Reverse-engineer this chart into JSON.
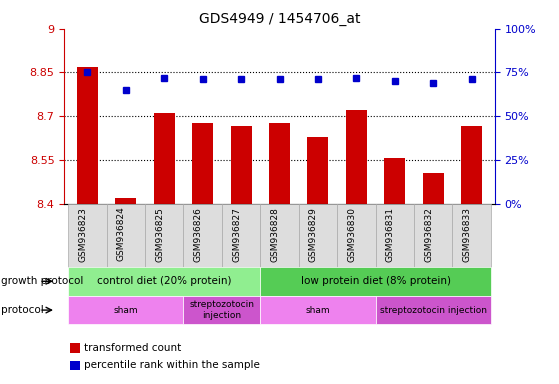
{
  "title": "GDS4949 / 1454706_at",
  "samples": [
    "GSM936823",
    "GSM936824",
    "GSM936825",
    "GSM936826",
    "GSM936827",
    "GSM936828",
    "GSM936829",
    "GSM936830",
    "GSM936831",
    "GSM936832",
    "GSM936833"
  ],
  "bar_values": [
    8.87,
    8.42,
    8.71,
    8.675,
    8.665,
    8.675,
    8.63,
    8.72,
    8.555,
    8.505,
    8.665
  ],
  "dot_values": [
    75,
    65,
    72,
    71,
    71,
    71,
    71,
    72,
    70,
    69,
    71
  ],
  "bar_color": "#cc0000",
  "dot_color": "#0000cc",
  "ylim_left": [
    8.4,
    9.0
  ],
  "ylim_right": [
    0,
    100
  ],
  "yticks_left": [
    8.4,
    8.55,
    8.7,
    8.85,
    9.0
  ],
  "ytick_labels_left": [
    "8.4",
    "8.55",
    "8.7",
    "8.85",
    "9"
  ],
  "yticks_right": [
    0,
    25,
    50,
    75,
    100
  ],
  "ytick_labels_right": [
    "0%",
    "25%",
    "50%",
    "75%",
    "100%"
  ],
  "hlines": [
    8.55,
    8.7,
    8.85
  ],
  "growth_protocol_groups": [
    {
      "label": "control diet (20% protein)",
      "start": 0,
      "end": 4,
      "color": "#90ee90"
    },
    {
      "label": "low protein diet (8% protein)",
      "start": 5,
      "end": 10,
      "color": "#55cc55"
    }
  ],
  "protocol_groups": [
    {
      "label": "sham",
      "start": 0,
      "end": 2,
      "color": "#ee82ee"
    },
    {
      "label": "streptozotocin\ninjection",
      "start": 3,
      "end": 4,
      "color": "#cc55cc"
    },
    {
      "label": "sham",
      "start": 5,
      "end": 7,
      "color": "#ee82ee"
    },
    {
      "label": "streptozotocin injection",
      "start": 8,
      "end": 10,
      "color": "#cc55cc"
    }
  ],
  "legend_items": [
    {
      "label": "transformed count",
      "color": "#cc0000"
    },
    {
      "label": "percentile rank within the sample",
      "color": "#0000cc"
    }
  ],
  "growth_protocol_label": "growth protocol",
  "protocol_label": "protocol",
  "sample_box_color": "#dddddd",
  "sample_box_edge_color": "#aaaaaa"
}
